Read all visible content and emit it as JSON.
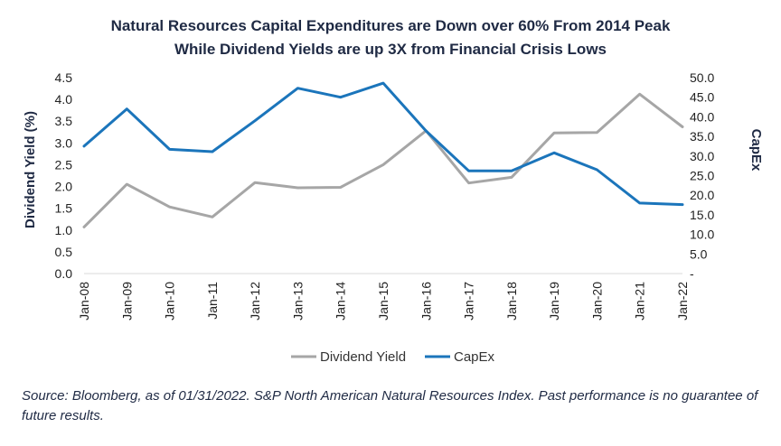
{
  "chart_data": {
    "type": "line",
    "title": "Natural Resources Capital Expenditures are Down over 60% From 2014 Peak",
    "subtitle": "While Dividend Yields are up 3X from Financial Crisis Lows",
    "xlabel": "",
    "ylabel": "Dividend Yield (%)",
    "y2label": "CapEx",
    "categories": [
      "Jan-08",
      "Jan-09",
      "Jan-10",
      "Jan-11",
      "Jan-12",
      "Jan-13",
      "Jan-14",
      "Jan-15",
      "Jan-16",
      "Jan-17",
      "Jan-18",
      "Jan-19",
      "Jan-20",
      "Jan-21",
      "Jan-22"
    ],
    "ylim": [
      0,
      4.5
    ],
    "y2lim": [
      0,
      50
    ],
    "yticks": [
      "0.0",
      "0.5",
      "1.0",
      "1.5",
      "2.0",
      "2.5",
      "3.0",
      "3.5",
      "4.0",
      "4.5"
    ],
    "y2ticks": [
      "-",
      "5.0",
      "10.0",
      "15.0",
      "20.0",
      "25.0",
      "30.0",
      "35.0",
      "40.0",
      "45.0",
      "50.0"
    ],
    "series": [
      {
        "name": "Dividend Yield",
        "axis": "left",
        "color": "#a6a6a6",
        "values": [
          1.07,
          2.05,
          1.53,
          1.3,
          2.09,
          1.97,
          1.98,
          2.5,
          3.28,
          2.08,
          2.21,
          3.23,
          3.24,
          4.12,
          3.37
        ]
      },
      {
        "name": "CapEx",
        "axis": "right",
        "color": "#1b75bb",
        "values": [
          32.5,
          42.0,
          31.7,
          31.1,
          39.0,
          47.3,
          45.0,
          48.6,
          36.4,
          26.2,
          26.2,
          30.8,
          26.5,
          18.0,
          17.6
        ]
      }
    ],
    "legend": "bottom",
    "grid": false
  },
  "source_note": "Source: Bloomberg, as of 01/31/2022. S&P North American Natural Resources Index. Past performance is no guarantee of future results."
}
